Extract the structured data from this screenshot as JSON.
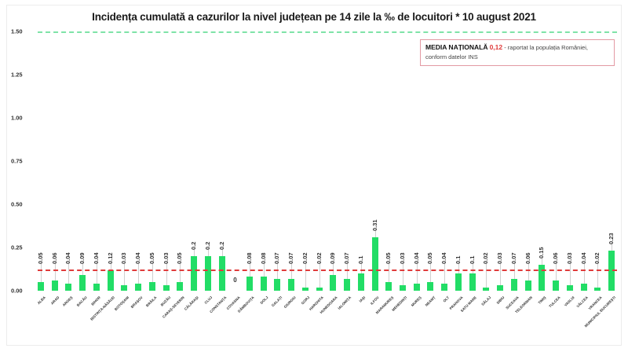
{
  "chart_data": {
    "type": "bar",
    "title": "Incidența cumulată a cazurilor la nivel județean pe 14 zile la ‰ de locuitori *  10 august 2021",
    "xlabel": "",
    "ylabel": "",
    "ylim": [
      0,
      1.5
    ],
    "yticks": [
      "0.00",
      "0.25",
      "0.50",
      "0.75",
      "1.00",
      "1.25",
      "1.50"
    ],
    "grid": false,
    "reference_line": {
      "value": 1.5,
      "color": "#7fe3a8",
      "style": "dashed"
    },
    "average_line": {
      "value": 0.12,
      "color": "#e03b3b",
      "style": "dashed"
    },
    "bar_color": "#22dd66",
    "categories": [
      "ALBA",
      "ARAD",
      "ARGEȘ",
      "BACĂU",
      "BIHOR",
      "BISTRIȚA-NĂSĂUD",
      "BOTOȘANI",
      "BRAȘOV",
      "BRĂILA",
      "BUZĂU",
      "CARAȘ-SEVERIN",
      "CĂLĂRAȘI",
      "CLUJ",
      "CONSTANȚA",
      "COVASNA",
      "DÂMBOVIȚA",
      "DOLJ",
      "GALAȚI",
      "GIURGIU",
      "GORJ",
      "HARGHITA",
      "HUNEDOARA",
      "IALOMIȚA",
      "IAȘI",
      "ILFOV",
      "MARAMUREȘ",
      "MEHEDINȚI",
      "MUREȘ",
      "NEAMȚ",
      "OLT",
      "PRAHOVA",
      "SATU MARE",
      "SĂLAJ",
      "SIBIU",
      "SUCEAVA",
      "TELEORMAN",
      "TIMIȘ",
      "TULCEA",
      "VASLUI",
      "VÂLCEA",
      "VRANCEA",
      "MUNICIPIUL BUCUREȘTI"
    ],
    "values": [
      0.05,
      0.06,
      0.04,
      0.09,
      0.04,
      0.12,
      0.03,
      0.04,
      0.05,
      0.03,
      0.05,
      0.2,
      0.2,
      0.2,
      0,
      0.08,
      0.08,
      0.07,
      0.07,
      0.02,
      0.02,
      0.09,
      0.07,
      0.1,
      0.31,
      0.05,
      0.03,
      0.04,
      0.05,
      0.04,
      0.1,
      0.1,
      0.02,
      0.03,
      0.07,
      0.06,
      0.15,
      0.06,
      0.03,
      0.04,
      0.02,
      0.23
    ],
    "value_labels": [
      "0.05",
      "0.06",
      "0.04",
      "0.09",
      "0.04",
      "0.12",
      "0.03",
      "0.04",
      "0.05",
      "0.03",
      "0.05",
      "0.2",
      "0.2",
      "0.2",
      "0",
      "0.08",
      "0.08",
      "0.07",
      "0.07",
      "0.02",
      "0.02",
      "0.09",
      "0.07",
      "0.1",
      "0.31",
      "0.05",
      "0.03",
      "0.04",
      "0.05",
      "0.04",
      "0.1",
      "0.1",
      "0.02",
      "0.03",
      "0.07",
      "0.06",
      "0.15",
      "0.06",
      "0.03",
      "0.04",
      "0.02",
      "0.23"
    ],
    "legend": {
      "label": "MEDIA NAȚIONALĂ",
      "value": "0,12",
      "text_line1": " - raportat la populația României,",
      "text_line2": "conform datelor INS"
    }
  }
}
